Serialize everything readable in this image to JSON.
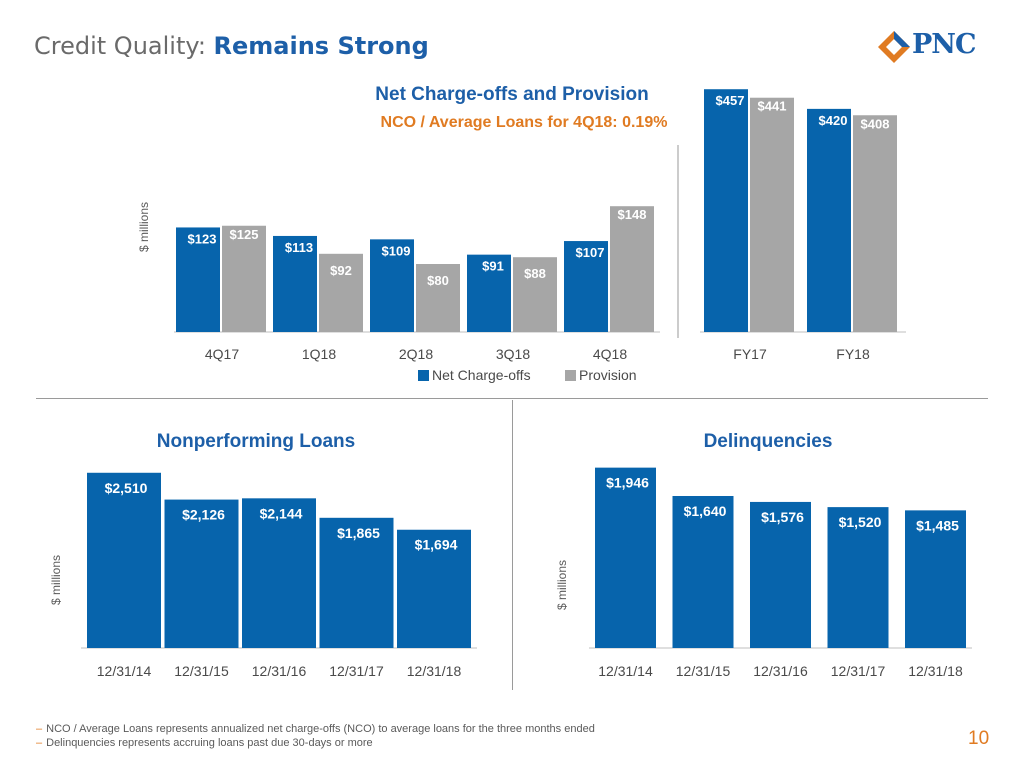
{
  "header": {
    "title_prefix": "Credit Quality: ",
    "title_emphasis": "Remains Strong",
    "logo_text": "PNC"
  },
  "colors": {
    "blue": "#0764ac",
    "gray": "#a6a6a6",
    "title_blue": "#1d5fa8",
    "accent_orange": "#e07b22",
    "axis_gray": "#bfbfbf"
  },
  "chart_data": [
    {
      "id": "nco",
      "type": "bar",
      "title": "Net Charge-offs and Provision",
      "subtitle": "NCO / Average Loans for 4Q18: 0.19%",
      "ylabel": "$ millions",
      "groups": [
        {
          "categories": [
            "4Q17",
            "1Q18",
            "2Q18",
            "3Q18",
            "4Q18"
          ],
          "series": [
            {
              "name": "Net Charge-offs",
              "values": [
                123,
                113,
                109,
                91,
                107
              ],
              "labels": [
                "$123",
                "$113",
                "$109",
                "$91",
                "$107"
              ]
            },
            {
              "name": "Provision",
              "values": [
                125,
                92,
                80,
                88,
                148
              ],
              "labels": [
                "$125",
                "$92",
                "$80",
                "$88",
                "$148"
              ]
            }
          ],
          "ylim": [
            0,
            300
          ]
        },
        {
          "categories": [
            "FY17",
            "FY18"
          ],
          "series": [
            {
              "name": "Net Charge-offs",
              "values": [
                457,
                420
              ],
              "labels": [
                "$457",
                "$420"
              ]
            },
            {
              "name": "Provision",
              "values": [
                441,
                408
              ],
              "labels": [
                "$441",
                "$408"
              ]
            }
          ],
          "ylim": [
            0,
            480
          ]
        }
      ],
      "legend": [
        "Net Charge-offs",
        "Provision"
      ],
      "legend_position": "bottom"
    },
    {
      "id": "npl",
      "type": "bar",
      "title": "Nonperforming Loans",
      "ylabel": "$ millions",
      "categories": [
        "12/31/14",
        "12/31/15",
        "12/31/16",
        "12/31/17",
        "12/31/18"
      ],
      "values": [
        2510,
        2126,
        2144,
        1865,
        1694
      ],
      "labels": [
        "$2,510",
        "$2,126",
        "$2,144",
        "$1,865",
        "$1,694"
      ],
      "ylim": [
        0,
        2650
      ]
    },
    {
      "id": "del",
      "type": "bar",
      "title": "Delinquencies",
      "ylabel": "$ millions",
      "categories": [
        "12/31/14",
        "12/31/15",
        "12/31/16",
        "12/31/17",
        "12/31/18"
      ],
      "values": [
        1946,
        1640,
        1576,
        1520,
        1485
      ],
      "labels": [
        "$1,946",
        "$1,640",
        "$1,576",
        "$1,520",
        "$1,485"
      ],
      "ylim": [
        0,
        2050
      ]
    }
  ],
  "footnotes": [
    "NCO / Average Loans represents annualized net charge-offs (NCO) to average loans for the three months ended",
    "Delinquencies represents accruing loans past due 30-days or more"
  ],
  "page_number": "10"
}
